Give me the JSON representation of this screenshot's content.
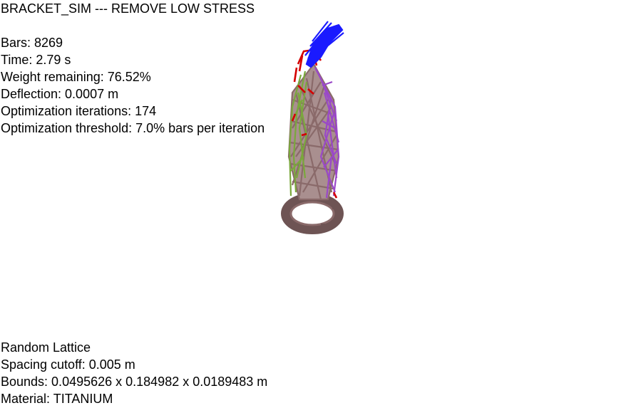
{
  "title": "BRACKET_SIM --- REMOVE LOW STRESS",
  "stats": {
    "bars": "Bars: 8269",
    "time": "Time: 2.79 s",
    "weight": "Weight remaining: 76.52%",
    "deflection": "Deflection: 0.0007 m",
    "iterations": "Optimization iterations: 174",
    "threshold": "Optimization threshold: 7.0% bars per iteration"
  },
  "lattice": {
    "type": "Random Lattice",
    "spacing": "Spacing cutoff: 0.005 m",
    "bounds": "Bounds: 0.0495626 x 0.184982 x 0.0189483 m",
    "material": "Material: TITANIUM"
  },
  "colors": {
    "background": "#ffffff",
    "load_region": "#1a1aff",
    "high_stress": "#d40000",
    "tension": "#9a48c8",
    "compression": "#7aa83c",
    "neutral": "#8a6a6a",
    "base_ring": "#6e5454"
  }
}
